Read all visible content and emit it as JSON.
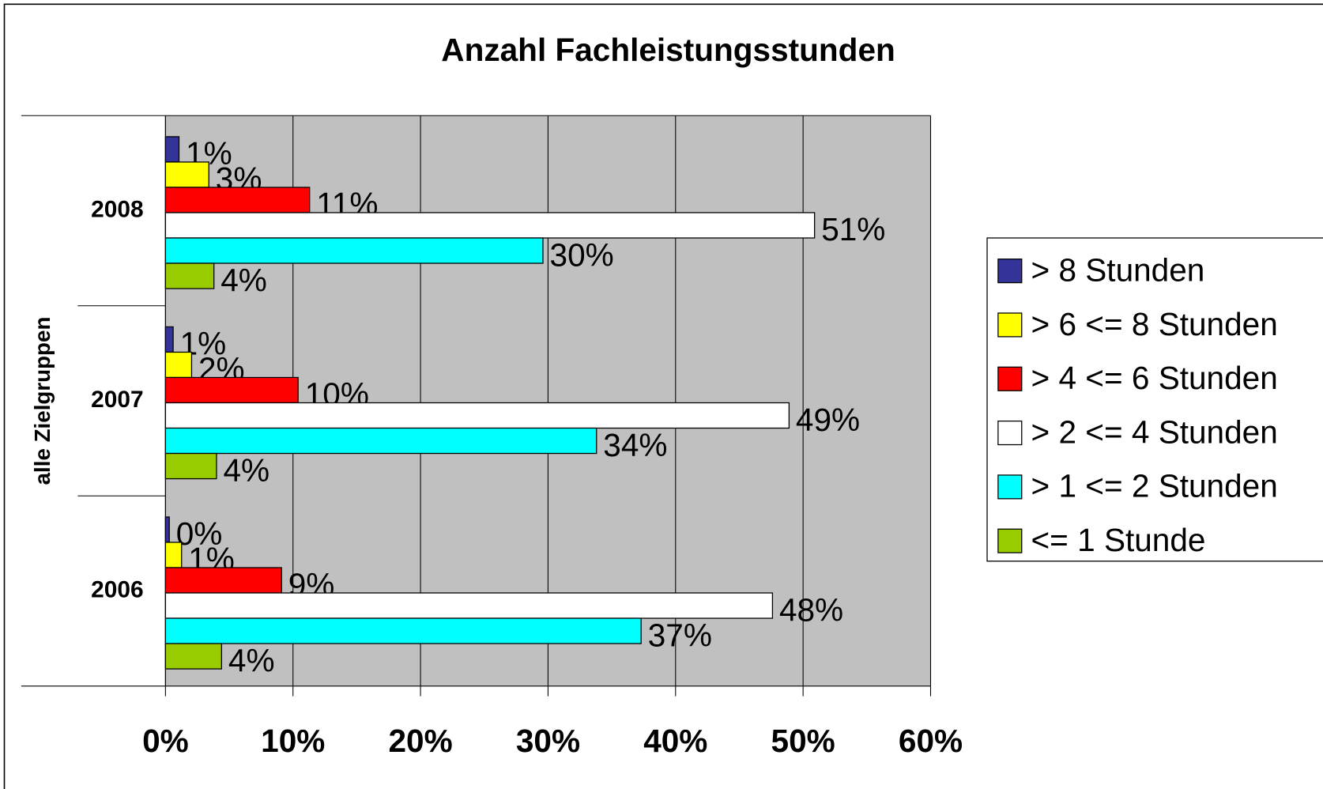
{
  "chart_data": {
    "type": "bar",
    "orientation": "horizontal",
    "title": "Anzahl Fachleistungsstunden",
    "y_label": "alle Zielgruppen",
    "categories": [
      "2008",
      "2007",
      "2006"
    ],
    "series": [
      {
        "name": "> 8 Stunden",
        "color": "#333399",
        "values": [
          1.06,
          0.6,
          0.3
        ],
        "value_labels": [
          "1%",
          "1%",
          "0%"
        ]
      },
      {
        "name": "> 6 <= 8 Stunden",
        "color": "#ffff00",
        "values": [
          3.4,
          2.05,
          1.26
        ],
        "value_labels": [
          "3%",
          "2%",
          "1%"
        ]
      },
      {
        "name": "> 4 <= 6 Stunden",
        "color": "#ff0000",
        "values": [
          11.3,
          10.4,
          9.1
        ],
        "value_labels": [
          "11%",
          "10%",
          "9%"
        ]
      },
      {
        "name": "> 2 <= 4 Stunden",
        "color": "#ffffff",
        "values": [
          50.9,
          48.9,
          47.6
        ],
        "value_labels": [
          "51%",
          "49%",
          "48%"
        ]
      },
      {
        "name": "> 1 <= 2 Stunden",
        "color": "#00ffff",
        "values": [
          29.6,
          33.8,
          37.3
        ],
        "value_labels": [
          "30%",
          "34%",
          "37%"
        ]
      },
      {
        "name": "<= 1 Stunde",
        "color": "#99cc00",
        "values": [
          3.8,
          4.0,
          4.4
        ],
        "value_labels": [
          "4%",
          "4%",
          "4%"
        ]
      }
    ],
    "xlim": [
      0,
      60
    ],
    "xticks": [
      {
        "value": 0,
        "label": "0%"
      },
      {
        "value": 10,
        "label": "10%"
      },
      {
        "value": 20,
        "label": "20%"
      },
      {
        "value": 30,
        "label": "30%"
      },
      {
        "value": 40,
        "label": "40%"
      },
      {
        "value": 50,
        "label": "50%"
      },
      {
        "value": 60,
        "label": "60%"
      }
    ],
    "grid": true,
    "legend": "right"
  }
}
